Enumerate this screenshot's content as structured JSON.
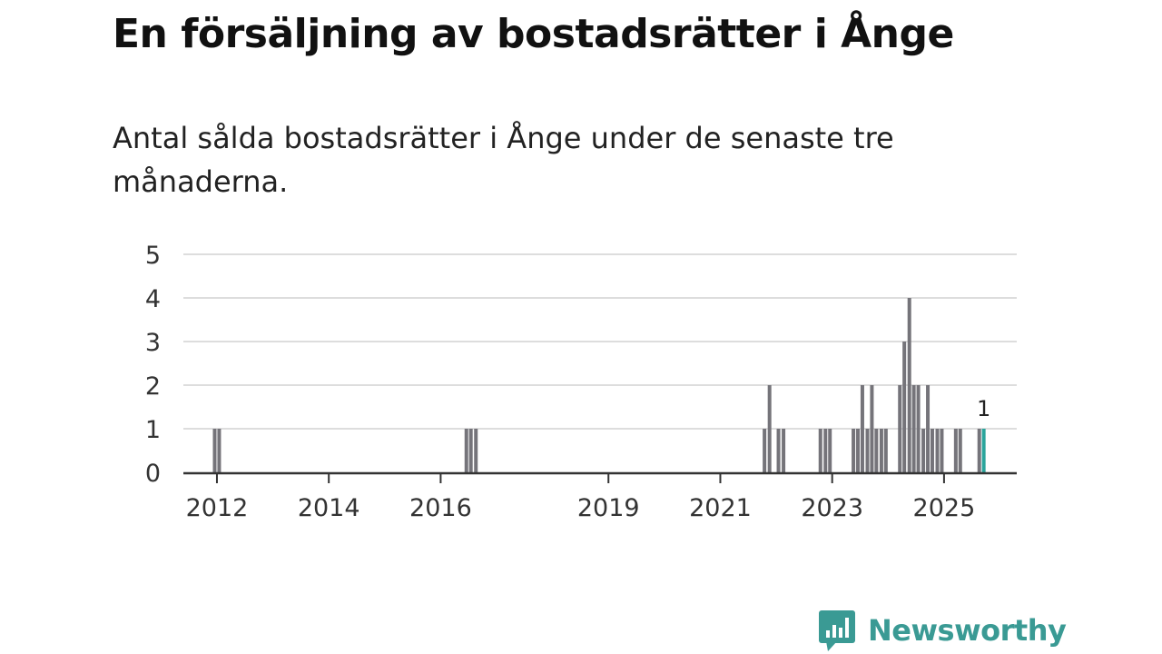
{
  "title": "En försäljning av bostadsrätter i Ånge",
  "subtitle": "Antal sålda bostadsrätter i Ånge under de senaste tre månaderna.",
  "brand": {
    "name": "Newsworthy",
    "color": "#3a9a94"
  },
  "colors": {
    "bar": "#75747a",
    "highlight": "#2ba59c",
    "grid": "#dddddd",
    "axis": "#333333"
  },
  "chart_data": {
    "type": "bar",
    "title": "En försäljning av bostadsrätter i Ånge",
    "xlabel": "",
    "ylabel": "",
    "ylim": [
      0,
      5
    ],
    "yticks": [
      0,
      1,
      2,
      3,
      4,
      5
    ],
    "xticks": [
      2012,
      2014,
      2016,
      2019,
      2021,
      2023,
      2025
    ],
    "xlim": [
      2011.4,
      2026.3
    ],
    "x": [
      2011.96,
      2012.04,
      2016.46,
      2016.54,
      2016.63,
      2021.79,
      2021.88,
      2022.04,
      2022.13,
      2022.79,
      2022.88,
      2022.96,
      2023.38,
      2023.46,
      2023.54,
      2023.63,
      2023.71,
      2023.79,
      2023.88,
      2023.96,
      2024.21,
      2024.29,
      2024.38,
      2024.46,
      2024.54,
      2024.63,
      2024.71,
      2024.79,
      2024.88,
      2024.96,
      2025.21,
      2025.29,
      2025.63,
      2025.71
    ],
    "values": [
      1,
      1,
      1,
      1,
      1,
      1,
      2,
      1,
      1,
      1,
      1,
      1,
      1,
      1,
      2,
      1,
      2,
      1,
      1,
      1,
      2,
      3,
      4,
      2,
      2,
      1,
      2,
      1,
      1,
      1,
      1,
      1,
      1,
      1
    ],
    "highlight": {
      "x": 2025.71,
      "value": 1,
      "label": "1"
    }
  }
}
